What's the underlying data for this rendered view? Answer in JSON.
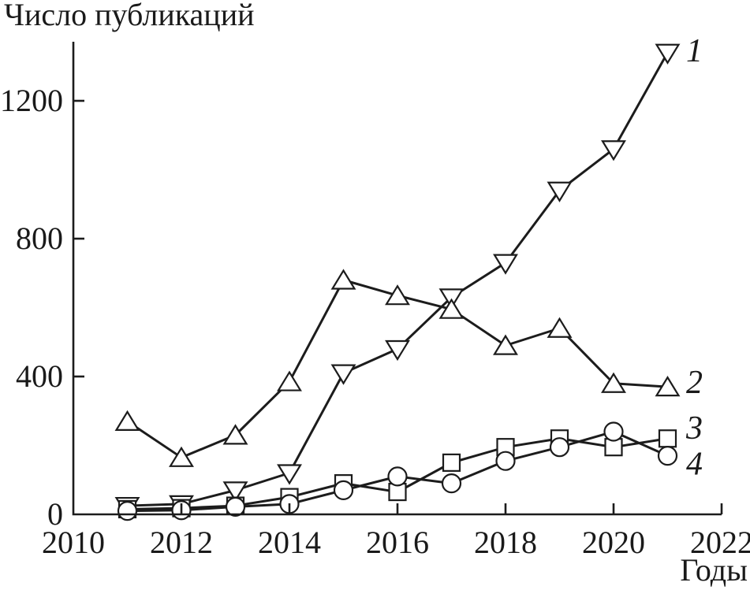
{
  "chart_data": {
    "type": "line",
    "title": "Число публикаций",
    "xlabel": "Годы",
    "ylabel": "",
    "x": [
      2011,
      2012,
      2013,
      2014,
      2015,
      2016,
      2017,
      2018,
      2019,
      2020,
      2021
    ],
    "series": [
      {
        "label": "1",
        "marker": "triangle-down",
        "values": [
          25,
          30,
          70,
          120,
          410,
          480,
          630,
          730,
          940,
          1060,
          1340
        ]
      },
      {
        "label": "2",
        "marker": "triangle-up",
        "values": [
          270,
          165,
          230,
          385,
          680,
          635,
          595,
          490,
          540,
          380,
          370
        ]
      },
      {
        "label": "3",
        "marker": "square",
        "values": [
          15,
          18,
          25,
          50,
          90,
          65,
          150,
          195,
          220,
          195,
          220
        ]
      },
      {
        "label": "4",
        "marker": "circle",
        "values": [
          10,
          12,
          22,
          30,
          70,
          110,
          90,
          155,
          195,
          240,
          170
        ]
      }
    ],
    "xlim": [
      2010,
      2022
    ],
    "ylim": [
      0,
      1370
    ],
    "xticks": [
      2010,
      2012,
      2014,
      2016,
      2018,
      2020,
      2022
    ],
    "yticks": [
      0,
      400,
      800,
      1200
    ],
    "grid": false,
    "legend_position": "right-end-labels",
    "line_color": "#1c1c1c",
    "axis_color": "#1c1c1c",
    "marker_fill": "#ffffff",
    "background": "#ffffff"
  }
}
